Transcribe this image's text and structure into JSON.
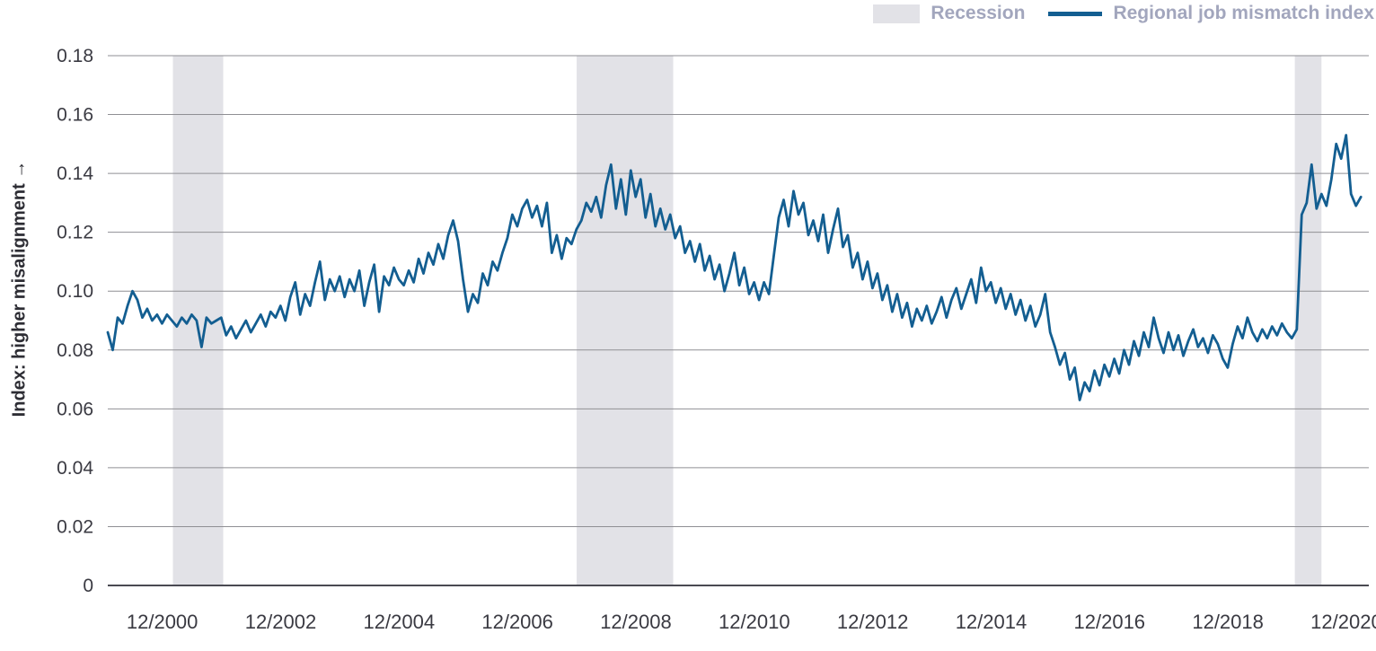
{
  "legend": {
    "recession_label": "Recession",
    "series_label": "Regional job mismatch index"
  },
  "y_axis_title": "Index: higher misalignment →",
  "chart_data": {
    "type": "line",
    "title": "",
    "xlabel": "",
    "ylabel": "Index: higher misalignment",
    "legend_position": "top-right",
    "grid": "horizontal",
    "ylim": [
      0,
      0.18
    ],
    "yticks": [
      0,
      0.02,
      0.04,
      0.06,
      0.08,
      0.1,
      0.12,
      0.14,
      0.16,
      0.18
    ],
    "ytick_labels": [
      "0",
      "0.02",
      "0.04",
      "0.06",
      "0.08",
      "0.10",
      "0.12",
      "0.14",
      "0.16",
      "0.18"
    ],
    "x_domain": [
      2000.0,
      2021.3
    ],
    "xticks": [
      2000.92,
      2002.92,
      2004.92,
      2006.92,
      2008.92,
      2010.92,
      2012.92,
      2014.92,
      2016.92,
      2018.92,
      2020.92
    ],
    "xtick_labels": [
      "12/2000",
      "12/2002",
      "12/2004",
      "12/2006",
      "12/2008",
      "12/2010",
      "12/2012",
      "12/2014",
      "12/2016",
      "12/2018",
      "12/2020"
    ],
    "recessions": [
      {
        "start": 2001.1,
        "end": 2001.95
      },
      {
        "start": 2007.92,
        "end": 2009.55
      },
      {
        "start": 2020.05,
        "end": 2020.5
      }
    ],
    "series": [
      {
        "name": "Regional job mismatch index",
        "frequency": "monthly",
        "start_year": 2000,
        "start_month": 1,
        "values": [
          0.086,
          0.08,
          0.091,
          0.089,
          0.095,
          0.1,
          0.097,
          0.091,
          0.094,
          0.09,
          0.092,
          0.089,
          0.092,
          0.09,
          0.088,
          0.091,
          0.089,
          0.092,
          0.09,
          0.081,
          0.091,
          0.089,
          0.09,
          0.091,
          0.085,
          0.088,
          0.084,
          0.087,
          0.09,
          0.086,
          0.089,
          0.092,
          0.088,
          0.093,
          0.091,
          0.095,
          0.09,
          0.098,
          0.103,
          0.092,
          0.099,
          0.095,
          0.103,
          0.11,
          0.097,
          0.104,
          0.1,
          0.105,
          0.098,
          0.104,
          0.1,
          0.107,
          0.095,
          0.103,
          0.109,
          0.093,
          0.105,
          0.102,
          0.108,
          0.104,
          0.102,
          0.107,
          0.103,
          0.111,
          0.106,
          0.113,
          0.109,
          0.116,
          0.111,
          0.119,
          0.124,
          0.117,
          0.104,
          0.093,
          0.099,
          0.096,
          0.106,
          0.102,
          0.11,
          0.107,
          0.113,
          0.118,
          0.126,
          0.122,
          0.128,
          0.131,
          0.125,
          0.129,
          0.122,
          0.13,
          0.113,
          0.119,
          0.111,
          0.118,
          0.116,
          0.121,
          0.124,
          0.13,
          0.127,
          0.132,
          0.125,
          0.136,
          0.143,
          0.128,
          0.138,
          0.126,
          0.141,
          0.132,
          0.138,
          0.125,
          0.133,
          0.122,
          0.128,
          0.121,
          0.126,
          0.118,
          0.122,
          0.113,
          0.117,
          0.11,
          0.116,
          0.107,
          0.112,
          0.104,
          0.109,
          0.1,
          0.106,
          0.113,
          0.102,
          0.108,
          0.099,
          0.103,
          0.097,
          0.103,
          0.099,
          0.112,
          0.125,
          0.131,
          0.122,
          0.134,
          0.126,
          0.13,
          0.119,
          0.124,
          0.117,
          0.126,
          0.113,
          0.121,
          0.128,
          0.115,
          0.119,
          0.108,
          0.113,
          0.104,
          0.11,
          0.101,
          0.106,
          0.097,
          0.102,
          0.093,
          0.099,
          0.091,
          0.096,
          0.088,
          0.094,
          0.09,
          0.095,
          0.089,
          0.093,
          0.098,
          0.091,
          0.097,
          0.101,
          0.094,
          0.099,
          0.104,
          0.096,
          0.108,
          0.1,
          0.103,
          0.096,
          0.101,
          0.094,
          0.099,
          0.092,
          0.097,
          0.09,
          0.095,
          0.088,
          0.092,
          0.099,
          0.086,
          0.081,
          0.075,
          0.079,
          0.07,
          0.074,
          0.063,
          0.069,
          0.066,
          0.073,
          0.068,
          0.075,
          0.071,
          0.077,
          0.072,
          0.08,
          0.075,
          0.083,
          0.078,
          0.086,
          0.081,
          0.091,
          0.084,
          0.079,
          0.086,
          0.08,
          0.085,
          0.078,
          0.083,
          0.087,
          0.081,
          0.084,
          0.079,
          0.085,
          0.082,
          0.077,
          0.074,
          0.082,
          0.088,
          0.084,
          0.091,
          0.086,
          0.083,
          0.087,
          0.084,
          0.088,
          0.085,
          0.089,
          0.086,
          0.084,
          0.087,
          0.126,
          0.13,
          0.143,
          0.128,
          0.133,
          0.129,
          0.138,
          0.15,
          0.145,
          0.153,
          0.133,
          0.129,
          0.132
        ]
      }
    ],
    "colors": {
      "line": "#135e91",
      "recession": "#e2e2e7",
      "grid": "#8f8f94",
      "axis": "#4a4a52",
      "tick_text": "#3a3a42",
      "legend_text": "#a2a6bd"
    }
  }
}
